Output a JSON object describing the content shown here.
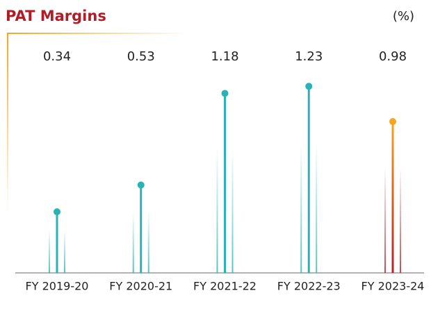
{
  "chart_data": {
    "type": "lollipop",
    "title": "PAT Margins",
    "unit": "(%)",
    "categories": [
      "FY 2019-20",
      "FY 2020-21",
      "FY 2021-22",
      "FY 2022-23",
      "FY 2023-24"
    ],
    "values": [
      0.34,
      0.53,
      1.18,
      1.23,
      0.98
    ],
    "colors": [
      "#2ab3b5",
      "#2ab3b5",
      "#2ab3b5",
      "#2ab3b5",
      "#f5a623"
    ]
  }
}
